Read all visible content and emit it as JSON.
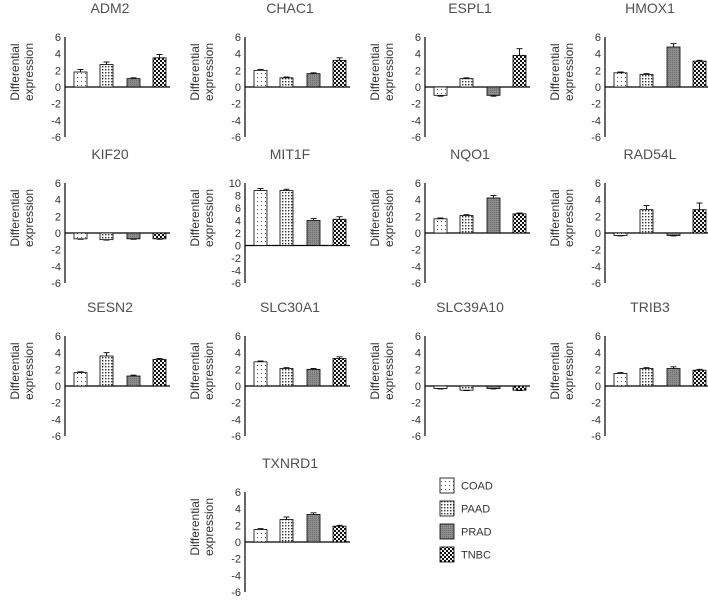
{
  "chart_data": [
    {
      "type": "bar",
      "title": "ADM2",
      "ylabel": [
        "Differential",
        "expression"
      ],
      "categories": [
        "COAD",
        "PAAD",
        "PRAD",
        "TNBC"
      ],
      "values": [
        1.8,
        2.7,
        1.0,
        3.5
      ],
      "errors": [
        0.3,
        0.3,
        0.1,
        0.4
      ],
      "ylim": [
        -6,
        6
      ],
      "yticks": [
        "6",
        "4",
        "2",
        "0",
        "-2",
        "-4",
        "-6"
      ]
    },
    {
      "type": "bar",
      "title": "CHAC1",
      "ylabel": [
        "Differential",
        "expression"
      ],
      "categories": [
        "COAD",
        "PAAD",
        "PRAD",
        "TNBC"
      ],
      "values": [
        2.0,
        1.1,
        1.6,
        3.2
      ],
      "errors": [
        0.1,
        0.1,
        0.1,
        0.3
      ],
      "ylim": [
        -6,
        6
      ],
      "yticks": [
        "6",
        "4",
        "2",
        "0",
        "-2",
        "-4",
        "-6"
      ]
    },
    {
      "type": "bar",
      "title": "ESPL1",
      "ylabel": [
        "Differential",
        "expression"
      ],
      "categories": [
        "COAD",
        "PAAD",
        "PRAD",
        "TNBC"
      ],
      "values": [
        -1.0,
        1.0,
        -1.0,
        3.8
      ],
      "errors": [
        0.1,
        0.1,
        0.1,
        0.8
      ],
      "ylim": [
        -6,
        6
      ],
      "yticks": [
        "6",
        "4",
        "2",
        "0",
        "-2",
        "-4",
        "-6"
      ]
    },
    {
      "type": "bar",
      "title": "HMOX1",
      "ylabel": [
        "Differential",
        "expression"
      ],
      "categories": [
        "COAD",
        "PAAD",
        "PRAD",
        "TNBC"
      ],
      "values": [
        1.7,
        1.5,
        4.8,
        3.1
      ],
      "errors": [
        0.1,
        0.1,
        0.4,
        0.1
      ],
      "ylim": [
        -6,
        6
      ],
      "yticks": [
        "6",
        "4",
        "2",
        "0",
        "-2",
        "-4",
        "-6"
      ]
    },
    {
      "type": "bar",
      "title": "KIF20",
      "ylabel": [
        "Differential",
        "expression"
      ],
      "categories": [
        "COAD",
        "PAAD",
        "PRAD",
        "TNBC"
      ],
      "values": [
        -0.7,
        -0.8,
        -0.7,
        -0.7
      ],
      "errors": [
        0.05,
        0.05,
        0.05,
        0.05
      ],
      "ylim": [
        -6,
        6
      ],
      "yticks": [
        "6",
        "4",
        "2",
        "0",
        "-2",
        "-4",
        "-6"
      ]
    },
    {
      "type": "bar",
      "title": "MIT1F",
      "ylabel": [
        "Differential",
        "expression"
      ],
      "categories": [
        "COAD",
        "PAAD",
        "PRAD",
        "TNBC"
      ],
      "values": [
        8.8,
        8.8,
        4.0,
        4.2
      ],
      "errors": [
        0.3,
        0.2,
        0.3,
        0.4
      ],
      "ylim": [
        -6,
        10
      ],
      "yticks": [
        "10",
        "8",
        "6",
        "4",
        "2",
        "0",
        "-2",
        "-4",
        "-6"
      ]
    },
    {
      "type": "bar",
      "title": "NQO1",
      "ylabel": [
        "Differential",
        "expression"
      ],
      "categories": [
        "COAD",
        "PAAD",
        "PRAD",
        "TNBC"
      ],
      "values": [
        1.7,
        2.1,
        4.2,
        2.3
      ],
      "errors": [
        0.1,
        0.1,
        0.3,
        0.1
      ],
      "ylim": [
        -6,
        6
      ],
      "yticks": [
        "6",
        "4",
        "2",
        "0",
        "-2",
        "-4",
        "-6"
      ]
    },
    {
      "type": "bar",
      "title": "RAD54L",
      "ylabel": [
        "Differential",
        "expression"
      ],
      "categories": [
        "COAD",
        "PAAD",
        "PRAD",
        "TNBC"
      ],
      "values": [
        -0.3,
        2.8,
        -0.3,
        2.8
      ],
      "errors": [
        0.05,
        0.5,
        0.05,
        0.8
      ],
      "ylim": [
        -6,
        6
      ],
      "yticks": [
        "6",
        "4",
        "2",
        "0",
        "-2",
        "-4",
        "-6"
      ]
    },
    {
      "type": "bar",
      "title": "SESN2",
      "ylabel": [
        "Differential",
        "expression"
      ],
      "categories": [
        "COAD",
        "PAAD",
        "PRAD",
        "TNBC"
      ],
      "values": [
        1.6,
        3.6,
        1.2,
        3.2
      ],
      "errors": [
        0.1,
        0.4,
        0.1,
        0.1
      ],
      "ylim": [
        -6,
        6
      ],
      "yticks": [
        "6",
        "4",
        "2",
        "0",
        "-2",
        "-4",
        "-6"
      ]
    },
    {
      "type": "bar",
      "title": "SLC30A1",
      "ylabel": [
        "Differential",
        "expression"
      ],
      "categories": [
        "COAD",
        "PAAD",
        "PRAD",
        "TNBC"
      ],
      "values": [
        2.9,
        2.1,
        2.0,
        3.3
      ],
      "errors": [
        0.1,
        0.1,
        0.1,
        0.2
      ],
      "ylim": [
        -6,
        6
      ],
      "yticks": [
        "6",
        "4",
        "2",
        "0",
        "-2",
        "-4",
        "-6"
      ]
    },
    {
      "type": "bar",
      "title": "SLC39A10",
      "ylabel": [
        "Differential",
        "expression"
      ],
      "categories": [
        "COAD",
        "PAAD",
        "PRAD",
        "TNBC"
      ],
      "values": [
        -0.3,
        -0.5,
        -0.3,
        -0.5
      ],
      "errors": [
        0.05,
        0.05,
        0.05,
        0.05
      ],
      "ylim": [
        -6,
        6
      ],
      "yticks": [
        "6",
        "4",
        "2",
        "0",
        "-2",
        "-4",
        "-6"
      ]
    },
    {
      "type": "bar",
      "title": "TRIB3",
      "ylabel": [
        "Differential",
        "expression"
      ],
      "categories": [
        "COAD",
        "PAAD",
        "PRAD",
        "TNBC"
      ],
      "values": [
        1.5,
        2.1,
        2.1,
        1.9
      ],
      "errors": [
        0.1,
        0.1,
        0.2,
        0.1
      ],
      "ylim": [
        -6,
        6
      ],
      "yticks": [
        "6",
        "4",
        "2",
        "0",
        "-2",
        "-4",
        "-6"
      ]
    },
    {
      "type": "bar",
      "title": "TXNRD1",
      "ylabel": [
        "Differential",
        "expression"
      ],
      "categories": [
        "COAD",
        "PAAD",
        "PRAD",
        "TNBC"
      ],
      "values": [
        1.5,
        2.7,
        3.3,
        1.9
      ],
      "errors": [
        0.1,
        0.3,
        0.2,
        0.1
      ],
      "ylim": [
        -6,
        6
      ],
      "yticks": [
        "6",
        "4",
        "2",
        "0",
        "-2",
        "-4",
        "-6"
      ]
    }
  ],
  "legend": {
    "entries": [
      {
        "label": "COAD",
        "pattern": "sparse-dots"
      },
      {
        "label": "PAAD",
        "pattern": "dense-dots"
      },
      {
        "label": "PRAD",
        "pattern": "gray"
      },
      {
        "label": "TNBC",
        "pattern": "checker"
      }
    ]
  }
}
